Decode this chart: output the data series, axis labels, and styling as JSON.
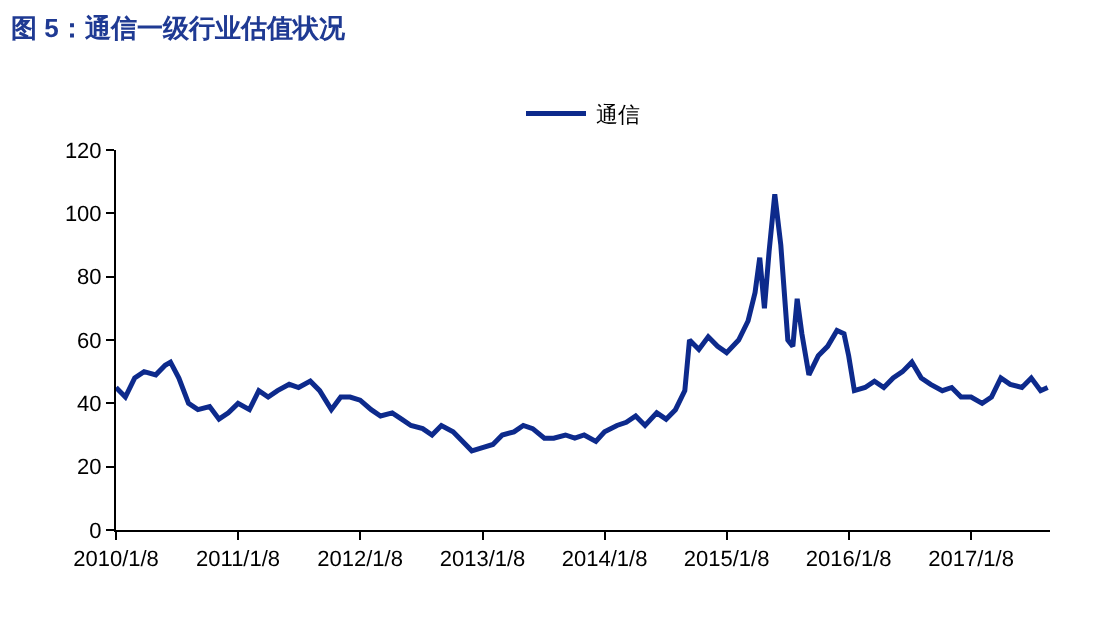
{
  "chart_data": {
    "type": "line",
    "title": "图 5：通信一级行业估值状况",
    "x": [
      "2010-01-08",
      "2010-02-05",
      "2010-03-05",
      "2010-04-02",
      "2010-05-07",
      "2010-06-04",
      "2010-06-20",
      "2010-07-15",
      "2010-08-13",
      "2010-09-10",
      "2010-10-15",
      "2010-11-12",
      "2010-12-10",
      "2011-01-08",
      "2011-02-11",
      "2011-03-11",
      "2011-04-08",
      "2011-05-06",
      "2011-06-10",
      "2011-07-08",
      "2011-08-12",
      "2011-09-09",
      "2011-10-14",
      "2011-11-11",
      "2011-12-09",
      "2012-01-08",
      "2012-02-10",
      "2012-03-09",
      "2012-04-13",
      "2012-05-11",
      "2012-06-08",
      "2012-07-13",
      "2012-08-10",
      "2012-09-07",
      "2012-10-12",
      "2012-11-09",
      "2012-12-07",
      "2013-01-08",
      "2013-02-08",
      "2013-03-08",
      "2013-04-12",
      "2013-05-10",
      "2013-06-07",
      "2013-07-12",
      "2013-08-09",
      "2013-09-13",
      "2013-10-11",
      "2013-11-08",
      "2013-12-13",
      "2014-01-08",
      "2014-02-14",
      "2014-03-14",
      "2014-04-11",
      "2014-05-09",
      "2014-06-13",
      "2014-07-11",
      "2014-08-08",
      "2014-09-05",
      "2014-09-19",
      "2014-10-17",
      "2014-11-14",
      "2014-12-12",
      "2015-01-08",
      "2015-02-13",
      "2015-03-13",
      "2015-04-03",
      "2015-04-17",
      "2015-05-01",
      "2015-05-15",
      "2015-06-01",
      "2015-06-19",
      "2015-07-10",
      "2015-07-25",
      "2015-08-07",
      "2015-08-21",
      "2015-09-11",
      "2015-10-09",
      "2015-11-06",
      "2015-12-04",
      "2015-12-25",
      "2016-01-08",
      "2016-01-25",
      "2016-02-26",
      "2016-03-25",
      "2016-04-22",
      "2016-05-20",
      "2016-06-17",
      "2016-07-15",
      "2016-08-12",
      "2016-09-09",
      "2016-10-14",
      "2016-11-11",
      "2016-12-09",
      "2017-01-08",
      "2017-02-10",
      "2017-03-10",
      "2017-04-07",
      "2017-05-05",
      "2017-06-09",
      "2017-07-07",
      "2017-08-04",
      "2017-08-25"
    ],
    "series": [
      {
        "name": "通信",
        "color": "#0d2a8c",
        "values": [
          45,
          42,
          48,
          50,
          49,
          52,
          53,
          48,
          40,
          38,
          39,
          35,
          37,
          40,
          38,
          44,
          42,
          44,
          46,
          45,
          47,
          44,
          38,
          42,
          42,
          41,
          38,
          36,
          37,
          35,
          33,
          32,
          30,
          33,
          31,
          28,
          25,
          26,
          27,
          30,
          31,
          33,
          32,
          29,
          29,
          30,
          29,
          30,
          28,
          31,
          33,
          34,
          36,
          33,
          37,
          35,
          38,
          44,
          60,
          57,
          61,
          58,
          56,
          60,
          66,
          75,
          86,
          70,
          88,
          106,
          90,
          60,
          58,
          73,
          62,
          49,
          55,
          58,
          63,
          62,
          55,
          44,
          45,
          47,
          45,
          48,
          50,
          53,
          48,
          46,
          44,
          45,
          42,
          42,
          40,
          42,
          48,
          46,
          45,
          48,
          44,
          45
        ]
      }
    ],
    "xlim": [
      "2010-01-08",
      "2017-09-01"
    ],
    "xticks": [
      {
        "value": "2010-01-08",
        "label": "2010/1/8"
      },
      {
        "value": "2011-01-08",
        "label": "2011/1/8"
      },
      {
        "value": "2012-01-08",
        "label": "2012/1/8"
      },
      {
        "value": "2013-01-08",
        "label": "2013/1/8"
      },
      {
        "value": "2014-01-08",
        "label": "2014/1/8"
      },
      {
        "value": "2015-01-08",
        "label": "2015/1/8"
      },
      {
        "value": "2016-01-08",
        "label": "2016/1/8"
      },
      {
        "value": "2017-01-08",
        "label": "2017/1/8"
      }
    ],
    "ylim": [
      0,
      120
    ],
    "yticks": [
      0,
      20,
      40,
      60,
      80,
      100,
      120
    ],
    "legend": "top",
    "marker": "none",
    "line_style": "solid"
  }
}
